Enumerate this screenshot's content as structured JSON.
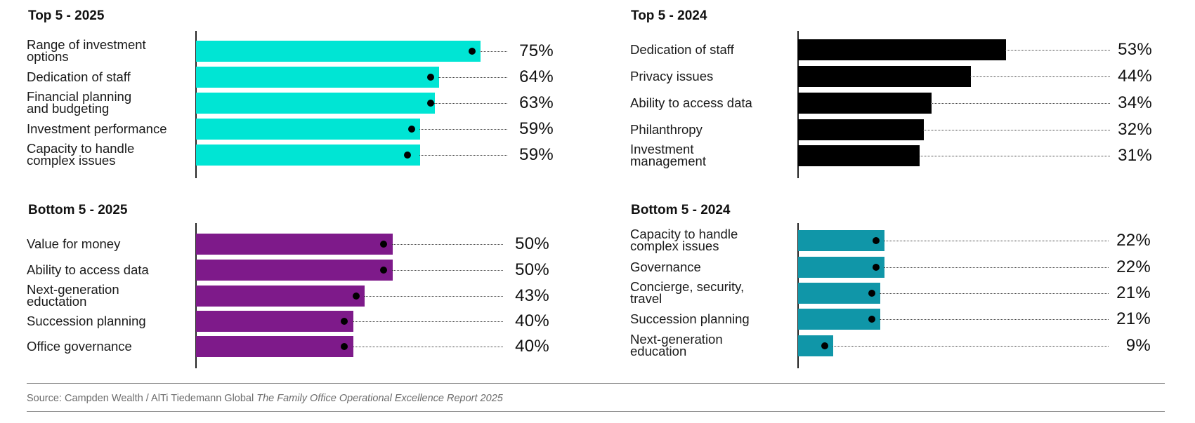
{
  "chart_data": [
    {
      "type": "bar",
      "orientation": "horizontal",
      "title": "Top 5 - 2025",
      "color": "#00e5d4",
      "categories": [
        [
          "Range of investment",
          "options"
        ],
        [
          "Dedication of staff"
        ],
        [
          "Financial planning",
          "and budgeting"
        ],
        [
          "Investment performance"
        ],
        [
          "Capacity to handle",
          "complex issues"
        ]
      ],
      "values": [
        75,
        64,
        63,
        59,
        59
      ],
      "value_labels": [
        "75%",
        "64%",
        "63%",
        "59%",
        "59%"
      ],
      "comparison_markers": [
        73,
        62,
        62,
        57,
        56
      ],
      "xlim": [
        0,
        100
      ]
    },
    {
      "type": "bar",
      "orientation": "horizontal",
      "title": "Bottom 5 - 2025",
      "color": "#7e1a8a",
      "categories": [
        [
          "Value for money"
        ],
        [
          "Ability to access data"
        ],
        [
          "Next-generation",
          "eductation"
        ],
        [
          "Succession planning"
        ],
        [
          "Office governance"
        ]
      ],
      "values": [
        50,
        50,
        43,
        40,
        40
      ],
      "value_labels": [
        "50%",
        "50%",
        "43%",
        "40%",
        "40%"
      ],
      "comparison_markers": [
        48,
        48,
        41,
        38,
        38
      ],
      "xlim": [
        0,
        100
      ]
    },
    {
      "type": "bar",
      "orientation": "horizontal",
      "title": "Top 5 - 2024",
      "color": "#000000",
      "categories": [
        [
          "Dedication of staff"
        ],
        [
          "Privacy issues"
        ],
        [
          "Ability to access data"
        ],
        [
          "Philanthropy"
        ],
        [
          "Investment",
          "management"
        ]
      ],
      "values": [
        53,
        44,
        34,
        32,
        31
      ],
      "value_labels": [
        "53%",
        "44%",
        "34%",
        "32%",
        "31%"
      ],
      "xlim": [
        0,
        100
      ]
    },
    {
      "type": "bar",
      "orientation": "horizontal",
      "title": "Bottom 5 - 2024",
      "color": "#1096a8",
      "categories": [
        [
          "Capacity to handle",
          "complex issues"
        ],
        [
          "Governance"
        ],
        [
          "Concierge, security,",
          "travel"
        ],
        [
          "Succession planning"
        ],
        [
          "Next-generation",
          "education"
        ]
      ],
      "values": [
        22,
        22,
        21,
        21,
        9
      ],
      "value_labels": [
        "22%",
        "22%",
        "21%",
        "21%",
        "9%"
      ],
      "comparison_markers": [
        20,
        20,
        19,
        19,
        7
      ],
      "xlim": [
        0,
        100
      ]
    }
  ],
  "source": {
    "prefix": "Source: Campden Wealth / AlTi Tiedemann Global ",
    "report": "The Family Office Operational Excellence Report 2025"
  }
}
